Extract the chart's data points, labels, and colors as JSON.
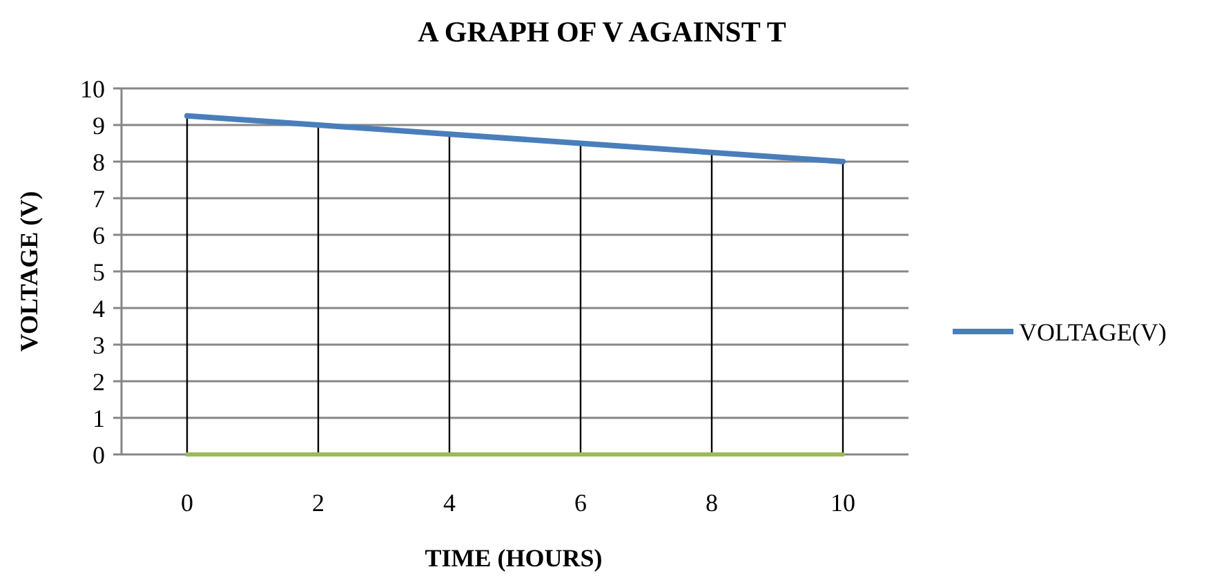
{
  "chart_data": {
    "type": "line",
    "title": "A GRAPH OF V AGAINST T",
    "xlabel": "TIME (HOURS)",
    "ylabel": "VOLTAGE (V)",
    "categories": [
      "0",
      "2",
      "4",
      "6",
      "8",
      "10"
    ],
    "series": [
      {
        "type": "bar",
        "color": "#000000",
        "values": [
          9.25,
          9.0,
          8.75,
          8.5,
          8.25,
          8.0
        ]
      },
      {
        "name": "VOLTAGE(V)",
        "color": "#4a7ebb",
        "values": [
          9.25,
          9.0,
          8.75,
          8.5,
          8.25,
          8.0
        ]
      },
      {
        "color": "#9bbb59",
        "values": [
          0,
          0,
          0,
          0,
          0,
          0
        ]
      }
    ],
    "ylim": [
      0,
      10
    ],
    "yticks": [
      0,
      1,
      2,
      3,
      4,
      5,
      6,
      7,
      8,
      9,
      10
    ],
    "grid": "y",
    "legend": "right",
    "marker": "none",
    "line_style": "solid"
  }
}
